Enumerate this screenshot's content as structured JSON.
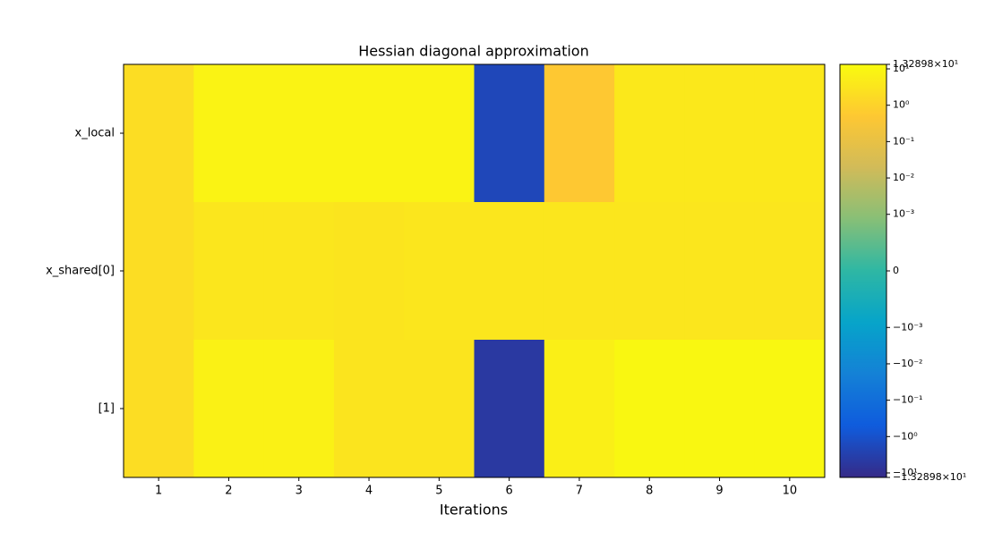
{
  "chart_data": {
    "type": "heatmap",
    "title": "Hessian diagonal approximation",
    "x_label": "Iterations",
    "x": [
      1,
      2,
      3,
      4,
      5,
      6,
      7,
      8,
      9,
      10
    ],
    "xlim": [
      0.5,
      10.5
    ],
    "rows": [
      "x_local",
      "x_shared[0]",
      "[1]"
    ],
    "values": [
      [
        2,
        8,
        8,
        8,
        8,
        -2,
        0.5,
        4,
        4,
        4
      ],
      [
        2,
        3.5,
        3.5,
        3,
        3.5,
        3.5,
        3.5,
        3.5,
        3.5,
        3.5
      ],
      [
        2,
        7,
        7,
        3,
        3,
        -5,
        6,
        10,
        10,
        10
      ]
    ],
    "colormap": "parula",
    "color_scale": "symlog",
    "linthresh": 0.001,
    "linscale": 1.4,
    "clim": [
      -13.2898,
      13.2898
    ],
    "cticks": [
      {
        "value": 13.2898,
        "label": "1.32898×10¹"
      },
      {
        "value": 10,
        "label": "10¹"
      },
      {
        "value": 1,
        "label": "10⁰"
      },
      {
        "value": 0.1,
        "label": "10⁻¹"
      },
      {
        "value": 0.01,
        "label": "10⁻²"
      },
      {
        "value": 0.001,
        "label": "10⁻³"
      },
      0,
      {
        "value": -0.001,
        "label": "−10⁻³"
      },
      {
        "value": -0.01,
        "label": "−10⁻²"
      },
      {
        "value": -0.1,
        "label": "−10⁻¹"
      },
      {
        "value": -1,
        "label": "−10⁰"
      },
      {
        "value": -10,
        "label": "−10¹"
      },
      {
        "value": -13.2898,
        "label": "−1.32898×10¹"
      }
    ]
  }
}
